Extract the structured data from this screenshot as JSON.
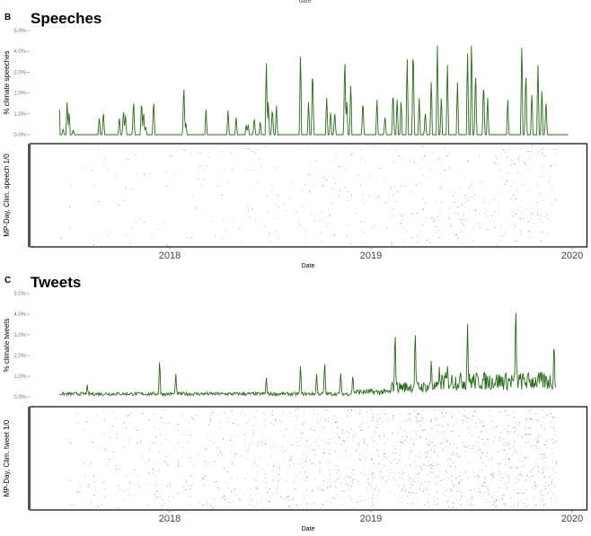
{
  "top_label": "date",
  "chart_data": [
    {
      "type": "line",
      "panel_letter": "B",
      "title": "Speeches",
      "ylabel": "% climate speeches",
      "ylim": [
        0,
        5
      ],
      "yticks": [
        "0.0%",
        "1.0%",
        "2.0%",
        "3.0%",
        "4.0%",
        "5.0%"
      ],
      "xlim": [
        2017.43,
        2020.02
      ],
      "series_color": "#2d6a1e",
      "x_unit": "decimal year",
      "peaks": [
        [
          2017.44,
          2.2
        ],
        [
          2017.45,
          1.9
        ],
        [
          2017.47,
          0.3
        ],
        [
          2017.49,
          1.6
        ],
        [
          2017.5,
          1.2
        ],
        [
          2017.52,
          0.25
        ],
        [
          2017.65,
          0.9
        ],
        [
          2017.67,
          1.2
        ],
        [
          2017.75,
          0.9
        ],
        [
          2017.77,
          1.3
        ],
        [
          2017.78,
          1.0
        ],
        [
          2017.82,
          1.8
        ],
        [
          2017.86,
          1.8
        ],
        [
          2017.87,
          1.2
        ],
        [
          2017.88,
          0.4
        ],
        [
          2017.92,
          1.8
        ],
        [
          2018.07,
          2.6
        ],
        [
          2018.08,
          0.6
        ],
        [
          2018.18,
          1.3
        ],
        [
          2018.29,
          1.2
        ],
        [
          2018.33,
          0.9
        ],
        [
          2018.38,
          0.5
        ],
        [
          2018.39,
          0.5
        ],
        [
          2018.42,
          0.9
        ],
        [
          2018.45,
          0.7
        ],
        [
          2018.48,
          3.7
        ],
        [
          2018.49,
          1.6
        ],
        [
          2018.51,
          1.4
        ],
        [
          2018.53,
          1.5
        ],
        [
          2018.65,
          4.3
        ],
        [
          2018.69,
          1.6
        ],
        [
          2018.71,
          3.5
        ],
        [
          2018.78,
          1.9
        ],
        [
          2018.8,
          1.2
        ],
        [
          2018.82,
          1.2
        ],
        [
          2018.87,
          4.1
        ],
        [
          2018.88,
          1.7
        ],
        [
          2018.9,
          2.7
        ],
        [
          2018.96,
          1.8
        ],
        [
          2019.03,
          1.8
        ],
        [
          2019.07,
          1.0
        ],
        [
          2019.11,
          2.3
        ],
        [
          2019.13,
          1.8
        ],
        [
          2019.15,
          1.8
        ],
        [
          2019.18,
          3.9
        ],
        [
          2019.21,
          4.7
        ],
        [
          2019.24,
          1.8
        ],
        [
          2019.27,
          1.2
        ],
        [
          2019.3,
          2.9
        ],
        [
          2019.33,
          4.6
        ],
        [
          2019.35,
          2.0
        ],
        [
          2019.38,
          3.6
        ],
        [
          2019.43,
          2.7
        ],
        [
          2019.48,
          4.2
        ],
        [
          2019.5,
          4.9
        ],
        [
          2019.52,
          3.3
        ],
        [
          2019.56,
          2.8
        ],
        [
          2019.58,
          1.9
        ],
        [
          2019.68,
          1.8
        ],
        [
          2019.75,
          4.8
        ],
        [
          2019.77,
          3.3
        ],
        [
          2019.8,
          2.2
        ],
        [
          2019.83,
          3.6
        ],
        [
          2019.85,
          2.4
        ],
        [
          2019.87,
          1.8
        ]
      ],
      "raster_ylabel": "MP-Day, Clim. speech 1/0",
      "xlabel": "Date",
      "xticks": [
        "2018",
        "2019",
        "2020"
      ],
      "xtick_values": [
        2018,
        2019,
        2020
      ]
    },
    {
      "type": "line",
      "panel_letter": "C",
      "title": "Tweets",
      "ylabel": "% climate tweets",
      "ylim": [
        0,
        5
      ],
      "yticks": [
        "0.0%",
        "1.0%",
        "2.0%",
        "3.0%",
        "4.0%",
        "5.0%"
      ],
      "xlim": [
        2017.43,
        2020.02
      ],
      "series_color": "#2d6a1e",
      "x_unit": "decimal year",
      "baseline_levels": [
        [
          2017.43,
          0.15
        ],
        [
          2018.9,
          0.25
        ],
        [
          2019.1,
          0.5
        ],
        [
          2019.35,
          0.8
        ],
        [
          2019.95,
          0.6
        ]
      ],
      "peaks": [
        [
          2017.44,
          0.75
        ],
        [
          2017.59,
          0.6
        ],
        [
          2017.95,
          1.9
        ],
        [
          2018.03,
          1.2
        ],
        [
          2018.48,
          1.0
        ],
        [
          2018.65,
          1.7
        ],
        [
          2018.73,
          1.2
        ],
        [
          2018.77,
          1.9
        ],
        [
          2018.85,
          1.3
        ],
        [
          2018.91,
          1.2
        ],
        [
          2019.12,
          3.5
        ],
        [
          2019.22,
          3.6
        ],
        [
          2019.3,
          2.0
        ],
        [
          2019.34,
          1.5
        ],
        [
          2019.38,
          1.6
        ],
        [
          2019.48,
          3.8
        ],
        [
          2019.72,
          4.9
        ],
        [
          2019.91,
          3.0
        ]
      ],
      "raster_ylabel": "MP-Day, Clim. tweet 1/0",
      "xlabel": "Date",
      "xticks": [
        "2018",
        "2019",
        "2020"
      ],
      "xtick_values": [
        2018,
        2019,
        2020
      ]
    }
  ]
}
